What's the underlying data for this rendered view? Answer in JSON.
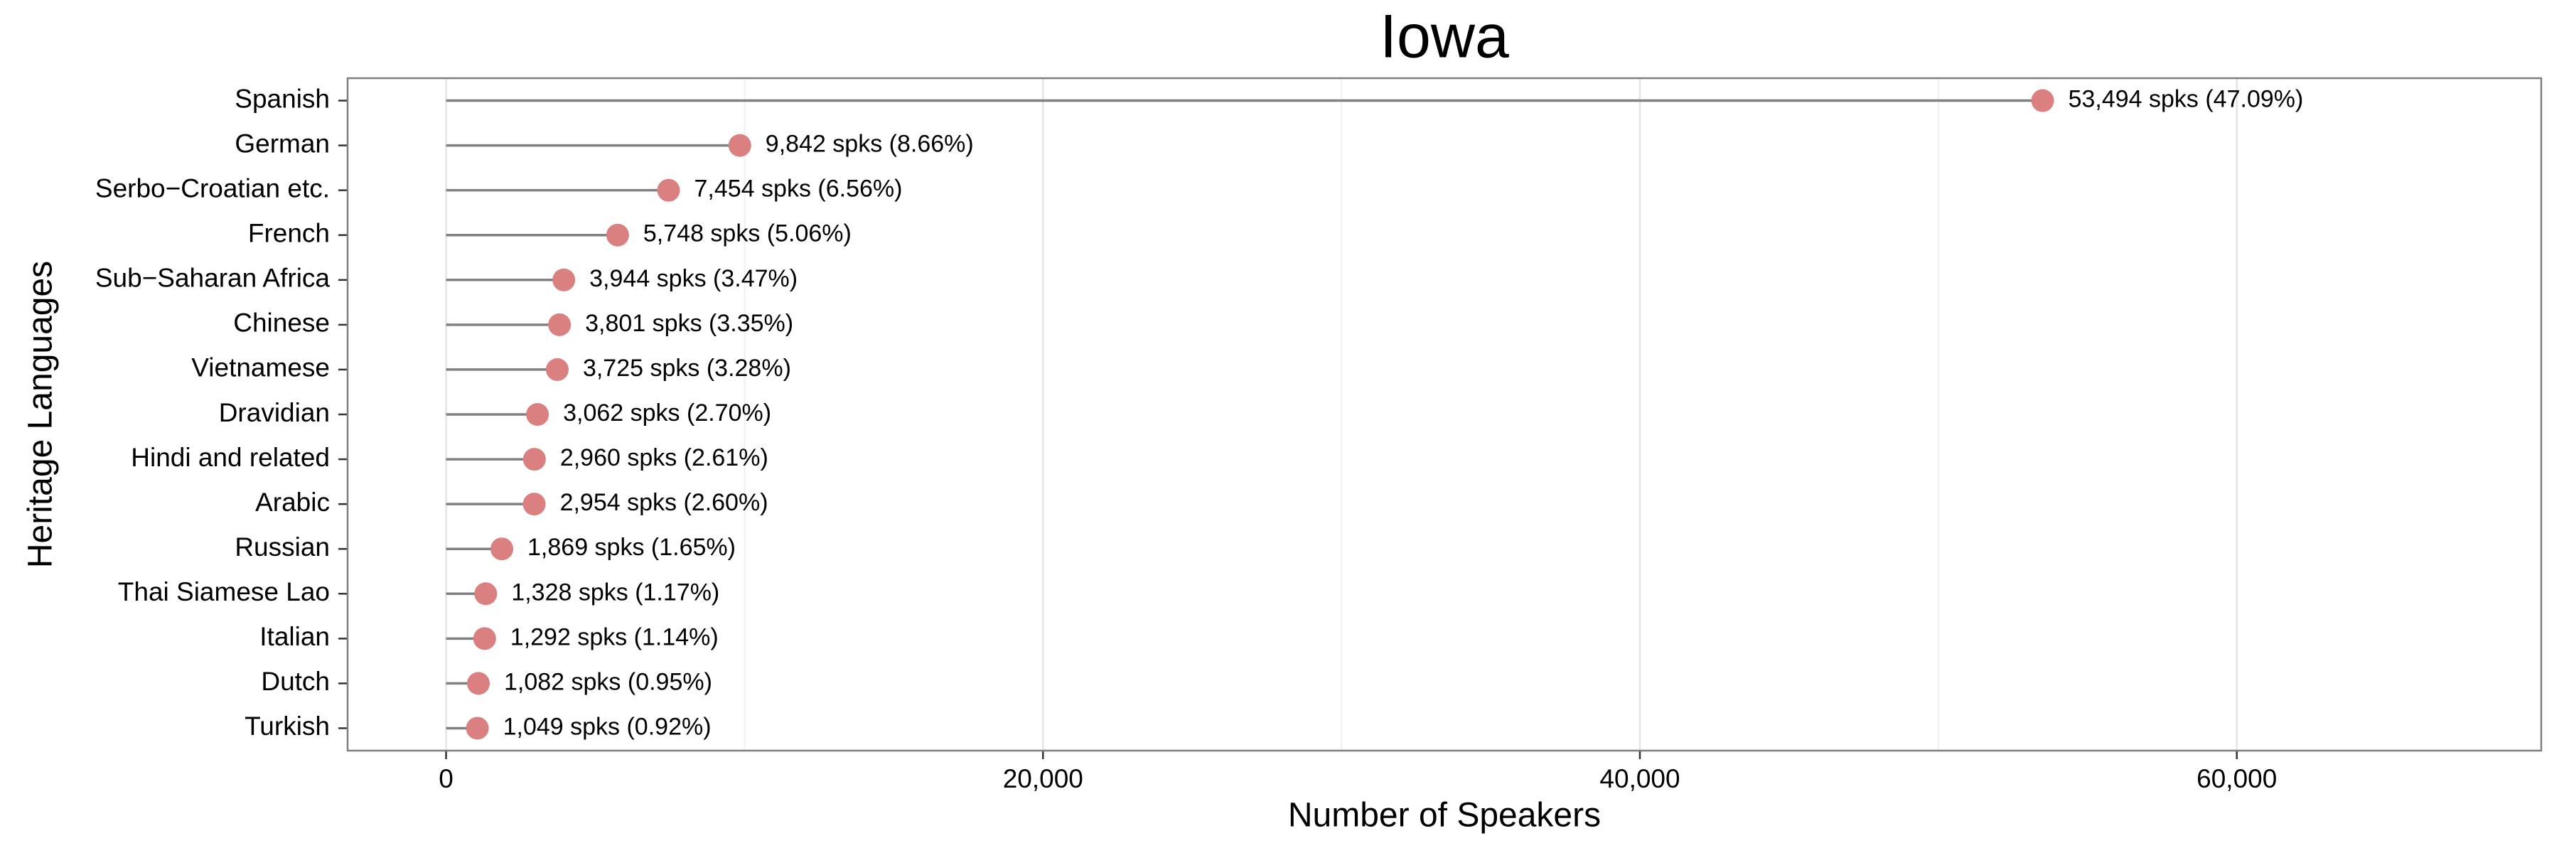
{
  "chart_data": {
    "type": "lollipop",
    "orientation": "horizontal",
    "title": "Iowa",
    "x_label": "Number of Speakers",
    "y_label": "Heritage Languages",
    "categories": [
      "Spanish",
      "German",
      "Serbo−Croatian etc.",
      "French",
      "Sub−Saharan Africa",
      "Chinese",
      "Vietnamese",
      "Dravidian",
      "Hindi and related",
      "Arabic",
      "Russian",
      "Thai Siamese Lao",
      "Italian",
      "Dutch",
      "Turkish"
    ],
    "values": [
      53494,
      9842,
      7454,
      5748,
      3944,
      3801,
      3725,
      3062,
      2960,
      2954,
      1869,
      1328,
      1292,
      1082,
      1049
    ],
    "value_labels": [
      "53,494 spks (47.09%)",
      "9,842 spks (8.66%)",
      "7,454 spks (6.56%)",
      "5,748 spks (5.06%)",
      "3,944 spks (3.47%)",
      "3,801 spks (3.35%)",
      "3,725 spks (3.28%)",
      "3,062 spks (2.70%)",
      "2,960 spks (2.61%)",
      "2,954 spks (2.60%)",
      "1,869 spks (1.65%)",
      "1,328 spks (1.17%)",
      "1,292 spks (1.14%)",
      "1,082 spks (0.95%)",
      "1,049 spks (0.92%)"
    ],
    "color": "#db8080",
    "stem_color": "#808080",
    "xlim": [
      -3300,
      70200
    ],
    "xticks": [
      0,
      {
        "value": 20000,
        "label": "20,000"
      },
      {
        "value": 40000,
        "label": "40,000"
      },
      {
        "value": 60000,
        "label": "60,000"
      }
    ],
    "xminorticks": [
      10000,
      30000,
      50000
    ],
    "grid": true
  }
}
